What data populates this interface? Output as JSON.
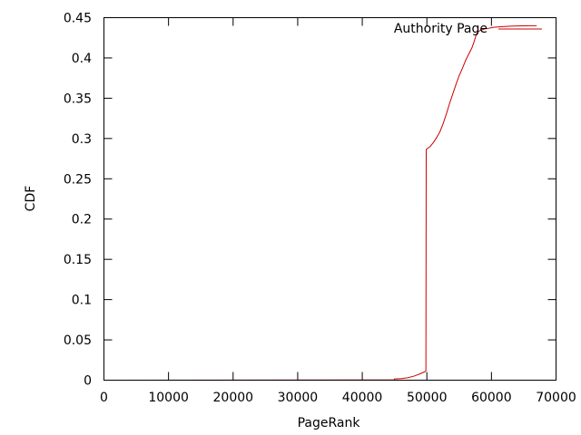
{
  "chart_data": {
    "type": "line",
    "title": "",
    "xlabel": "PageRank",
    "ylabel": "CDF",
    "xlim": [
      0,
      70000
    ],
    "ylim": [
      0,
      0.45
    ],
    "xticks": [
      0,
      10000,
      20000,
      30000,
      40000,
      50000,
      60000,
      70000
    ],
    "xtick_labels": [
      "0",
      "10000",
      "20000",
      "30000",
      "40000",
      "50000",
      "60000",
      "70000"
    ],
    "yticks": [
      0,
      0.05,
      0.1,
      0.15,
      0.2,
      0.25,
      0.3,
      0.35,
      0.4,
      0.45
    ],
    "ytick_labels": [
      "0",
      "0.05",
      "0.1",
      "0.15",
      "0.2",
      "0.25",
      "0.3",
      "0.35",
      "0.4",
      "0.45"
    ],
    "grid": false,
    "legend_position": "top-right",
    "series": [
      {
        "name": "Authority Page",
        "color": "#cc0000",
        "points": [
          [
            0,
            0
          ],
          [
            44900,
            0.0003
          ],
          [
            45000,
            0.0015
          ],
          [
            46000,
            0.002
          ],
          [
            47000,
            0.003
          ],
          [
            48000,
            0.005
          ],
          [
            49000,
            0.008
          ],
          [
            49800,
            0.011
          ],
          [
            49850,
            0.012
          ],
          [
            49900,
            0.2865
          ],
          [
            50500,
            0.29
          ],
          [
            51000,
            0.295
          ],
          [
            51500,
            0.301
          ],
          [
            52000,
            0.308
          ],
          [
            52500,
            0.318
          ],
          [
            53000,
            0.33
          ],
          [
            53500,
            0.343
          ],
          [
            54000,
            0.355
          ],
          [
            54500,
            0.367
          ],
          [
            55000,
            0.378
          ],
          [
            55500,
            0.387
          ],
          [
            56000,
            0.397
          ],
          [
            56500,
            0.405
          ],
          [
            57000,
            0.413
          ],
          [
            57300,
            0.42
          ],
          [
            57500,
            0.425
          ],
          [
            57700,
            0.43
          ],
          [
            58000,
            0.433
          ],
          [
            58500,
            0.435
          ],
          [
            59000,
            0.436
          ],
          [
            59700,
            0.437
          ],
          [
            60000,
            0.4375
          ],
          [
            60300,
            0.438
          ],
          [
            61000,
            0.4385
          ],
          [
            62000,
            0.439
          ],
          [
            63000,
            0.4395
          ],
          [
            64000,
            0.4398
          ],
          [
            66000,
            0.44
          ],
          [
            67000,
            0.44
          ]
        ]
      }
    ]
  }
}
